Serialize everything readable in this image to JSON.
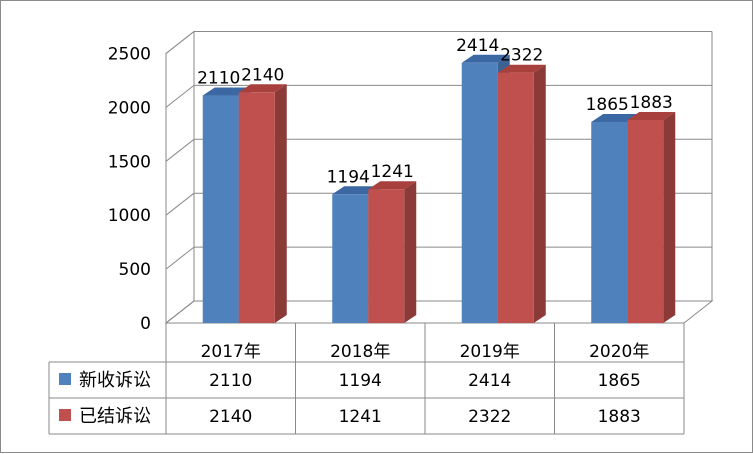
{
  "chart_data": {
    "type": "bar",
    "categories": [
      "2017年",
      "2018年",
      "2019年",
      "2020年"
    ],
    "series": [
      {
        "name": "新收诉讼",
        "values": [
          2110,
          1194,
          2414,
          1865
        ],
        "color": "#4f81bd",
        "side": "#3a6394",
        "top": "#3b67a3"
      },
      {
        "name": "已结诉讼",
        "values": [
          2140,
          1241,
          2322,
          1883
        ],
        "color": "#c0504d",
        "side": "#8b3a38",
        "top": "#a8413e"
      }
    ],
    "y_ticks": [
      "0",
      "500",
      "1000",
      "1500",
      "2000",
      "2500"
    ],
    "ylim": [
      0,
      2500
    ],
    "gridlines": true,
    "legend": "data-table"
  }
}
